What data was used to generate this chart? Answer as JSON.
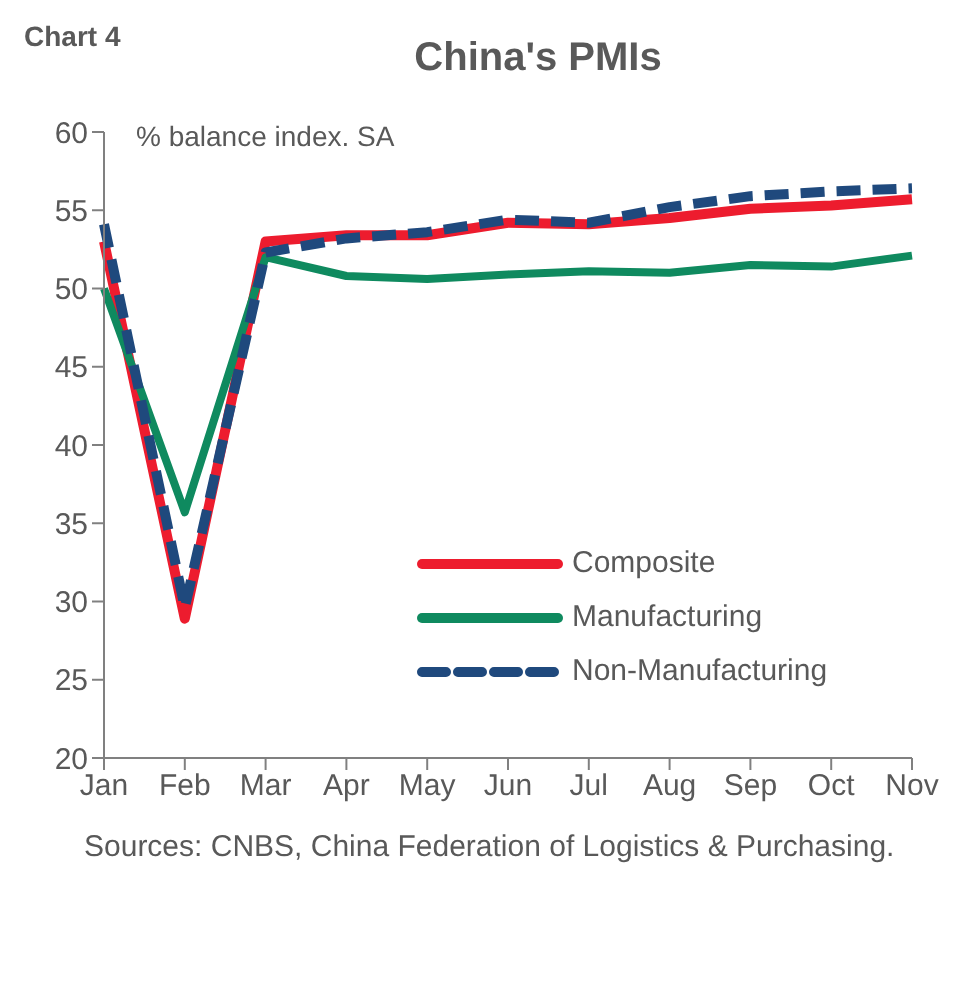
{
  "chart_data": {
    "type": "line",
    "title": "China's PMIs",
    "ylabel": "% balance index. SA",
    "annotations": [
      "Chart 4",
      "Sources: CNBS, China Federation of Logistics & Purchasing."
    ],
    "categories": [
      "Jan",
      "Feb",
      "Mar",
      "Apr",
      "May",
      "Jun",
      "Jul",
      "Aug",
      "Sep",
      "Oct",
      "Nov"
    ],
    "series": [
      {
        "name": "Composite",
        "color": "#ed1c2e",
        "line_style": "solid",
        "values": [
          53.0,
          28.9,
          53.0,
          53.4,
          53.4,
          54.2,
          54.1,
          54.5,
          55.1,
          55.3,
          55.7
        ]
      },
      {
        "name": "Manufacturing",
        "color": "#0f8a5f",
        "line_style": "solid",
        "values": [
          50.0,
          35.7,
          52.0,
          50.8,
          50.6,
          50.9,
          51.1,
          51.0,
          51.5,
          51.4,
          52.1
        ]
      },
      {
        "name": "Non-Manufacturing",
        "color": "#1f497d",
        "line_style": "dashed",
        "values": [
          54.1,
          29.6,
          52.3,
          53.2,
          53.6,
          54.4,
          54.2,
          55.2,
          55.9,
          56.2,
          56.4
        ]
      }
    ],
    "ylim": [
      20,
      60
    ],
    "yticks": [
      20,
      25,
      30,
      35,
      40,
      45,
      50,
      55,
      60
    ],
    "grid": false,
    "legend": "bottom right",
    "marker": "none"
  }
}
